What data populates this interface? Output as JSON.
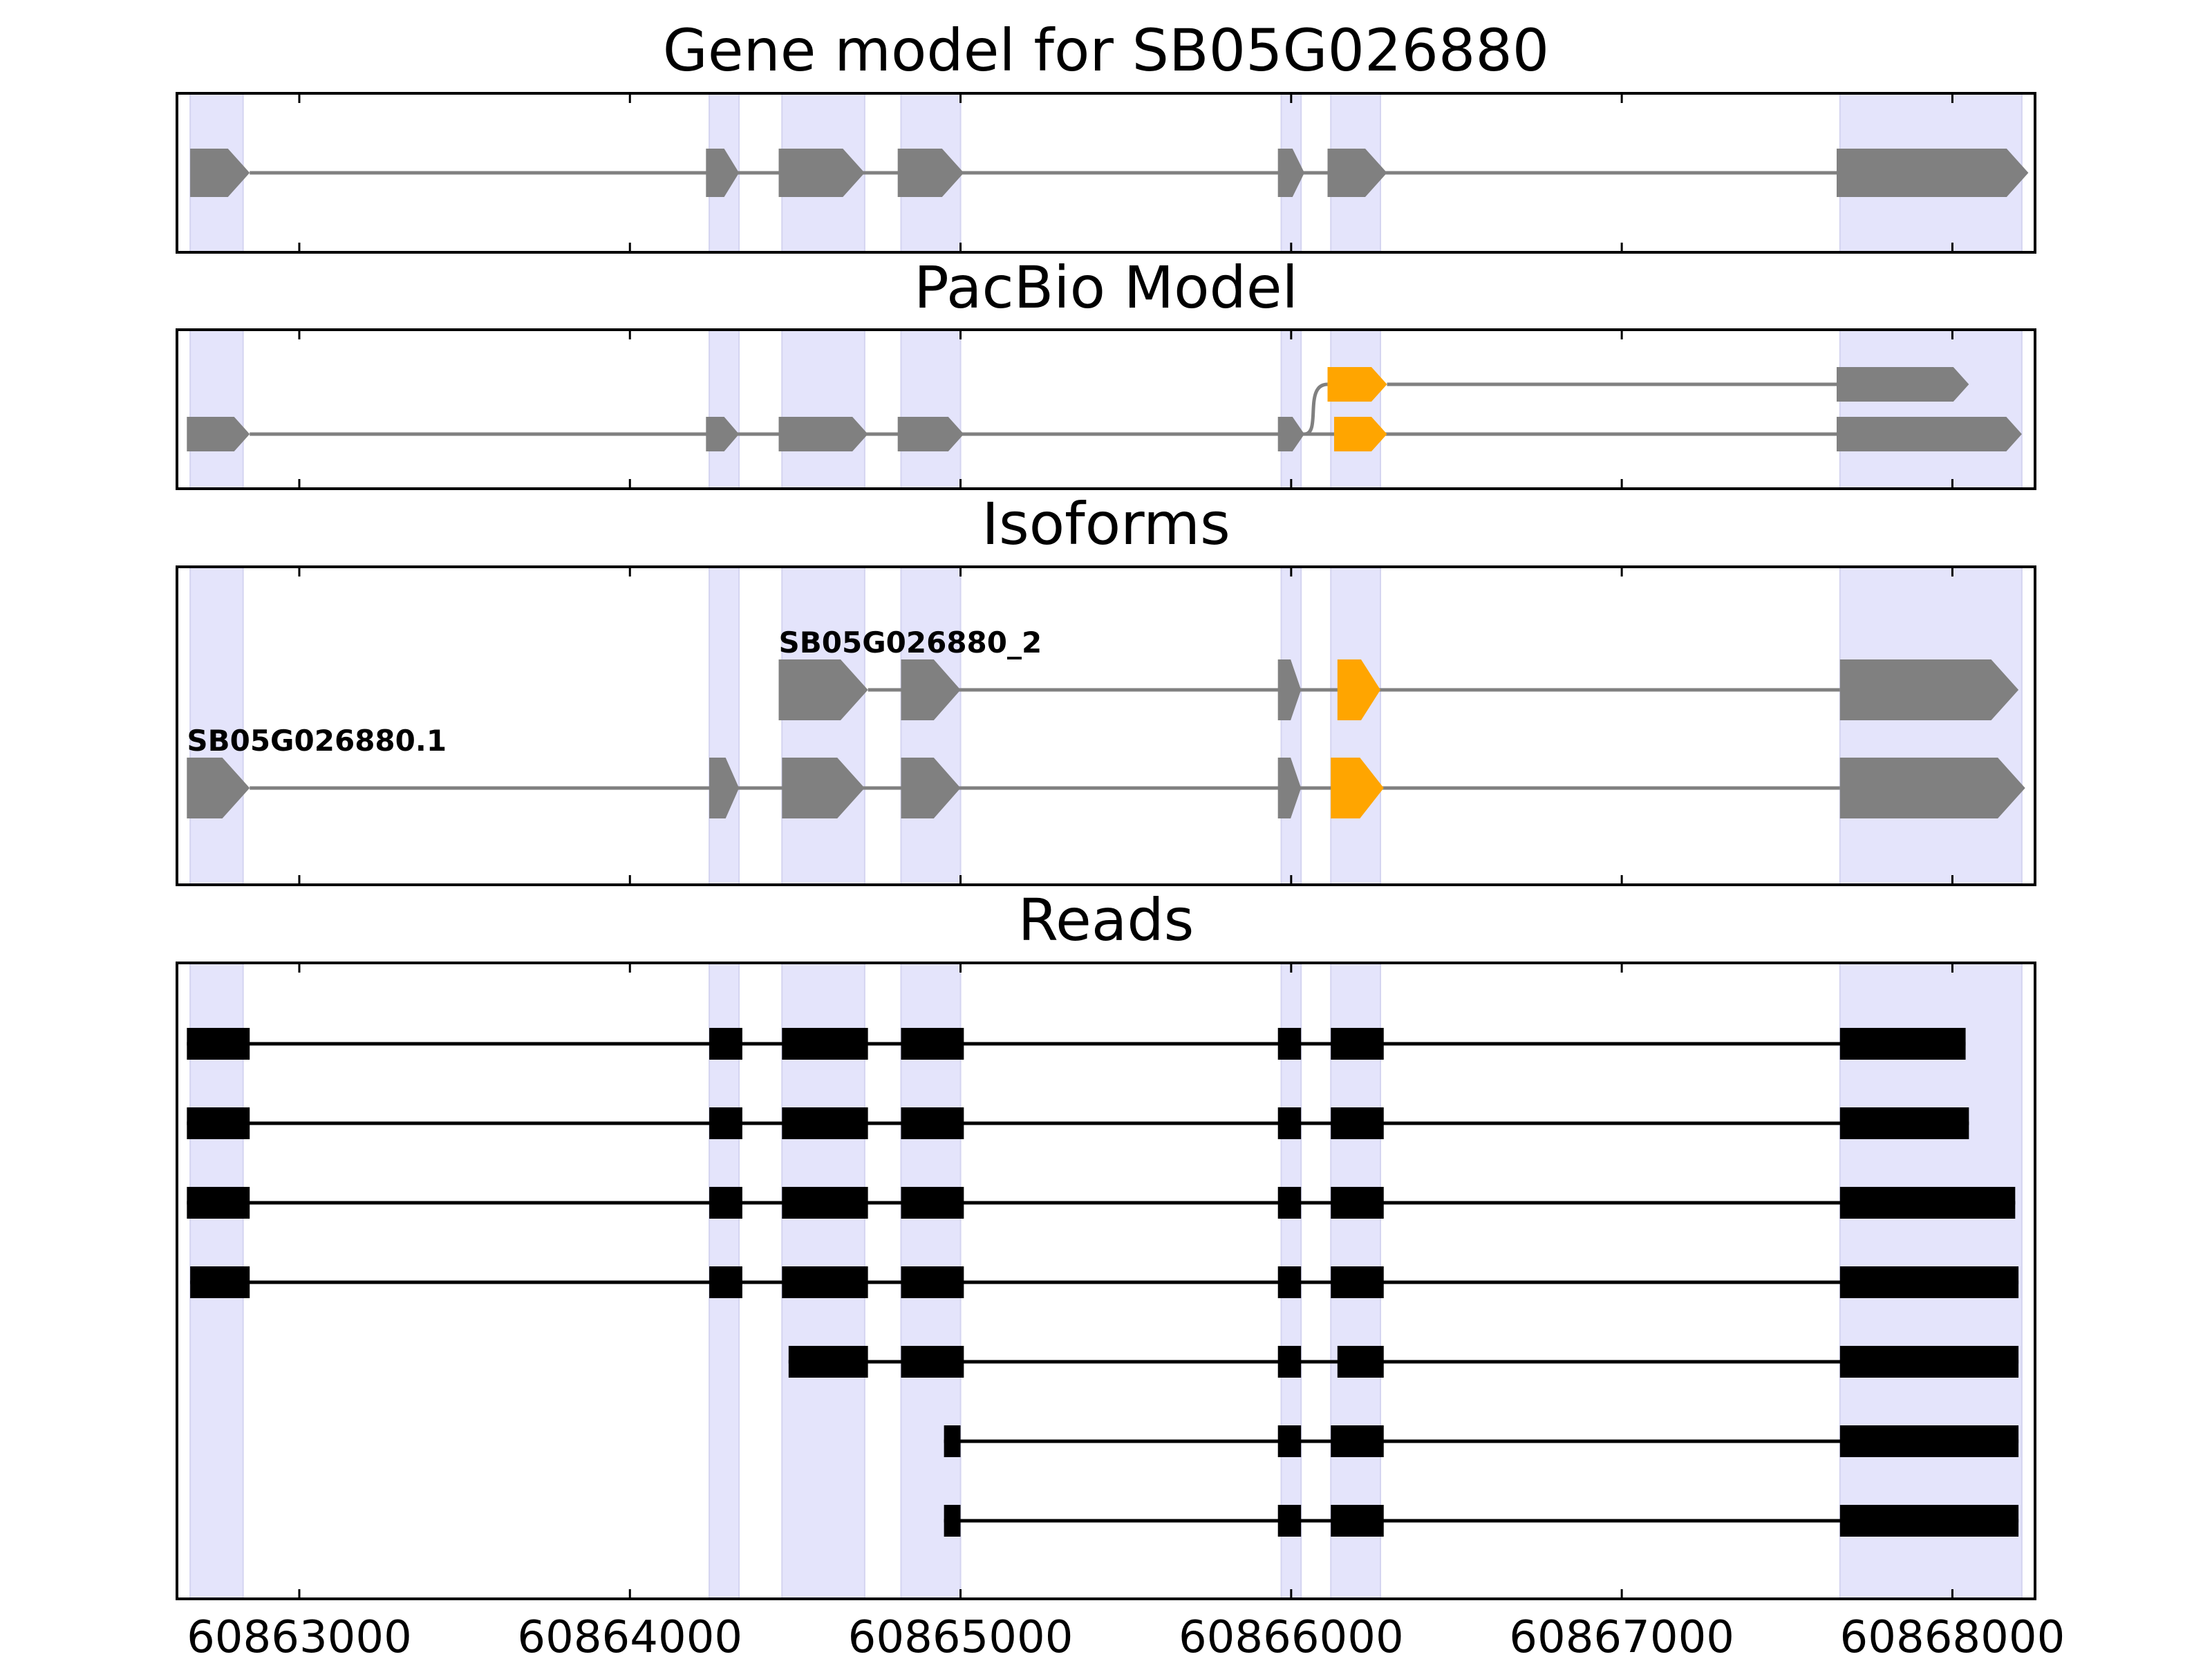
{
  "chart_data": {
    "type": "gene-structure",
    "xlim": [
      60862630,
      60868250
    ],
    "x_ticks": [
      60863000,
      60864000,
      60865000,
      60866000,
      60867000,
      60868000
    ],
    "x_tick_labels": [
      "60863000",
      "60864000",
      "60865000",
      "60866000",
      "60867000",
      "60868000"
    ],
    "colors": {
      "highlight": "#e4e4fb",
      "model_exon": "#808080",
      "alt_exon": "#ffa500",
      "read": "#000000",
      "intron": "#808080"
    },
    "highlight_regions": [
      [
        60862670,
        60862830
      ],
      [
        60864240,
        60864330
      ],
      [
        60864460,
        60864710
      ],
      [
        60864820,
        60865000
      ],
      [
        60865970,
        60866030
      ],
      [
        60866120,
        60866270
      ],
      [
        60867660,
        60868210
      ]
    ],
    "panels": [
      {
        "key": "gene",
        "title": "Gene model for SB05G026880",
        "tracks": [
          {
            "level": 0,
            "exons": [
              {
                "start": 60862670,
                "end": 60862850
              },
              {
                "start": 60864230,
                "end": 60864330
              },
              {
                "start": 60864450,
                "end": 60864710
              },
              {
                "start": 60864810,
                "end": 60865010
              },
              {
                "start": 60865960,
                "end": 60866040
              },
              {
                "start": 60866110,
                "end": 60866290
              },
              {
                "start": 60867650,
                "end": 60868230
              }
            ]
          }
        ]
      },
      {
        "key": "pacbio",
        "title": "PacBio Model",
        "tracks": [
          {
            "level": 1,
            "exons": [
              {
                "start": 60866110,
                "end": 60866290,
                "alt": true
              },
              {
                "start": 60867650,
                "end": 60868050
              }
            ]
          },
          {
            "level": 0,
            "exons": [
              {
                "start": 60862660,
                "end": 60862850
              },
              {
                "start": 60864230,
                "end": 60864330
              },
              {
                "start": 60864450,
                "end": 60864720
              },
              {
                "start": 60864810,
                "end": 60865010
              },
              {
                "start": 60865960,
                "end": 60866040
              },
              {
                "start": 60866130,
                "end": 60866290,
                "alt": true
              },
              {
                "start": 60867650,
                "end": 60868210
              }
            ]
          }
        ],
        "branch": {
          "from": 60866040,
          "to": 60866110
        }
      },
      {
        "key": "isoforms",
        "title": "Isoforms",
        "tracks": [
          {
            "level": 1,
            "label": "SB05G026880_2",
            "exons": [
              {
                "start": 60864450,
                "end": 60864720
              },
              {
                "start": 60864820,
                "end": 60865000
              },
              {
                "start": 60865960,
                "end": 60866030
              },
              {
                "start": 60866140,
                "end": 60866270,
                "alt": true
              },
              {
                "start": 60867660,
                "end": 60868200
              }
            ]
          },
          {
            "level": 0,
            "label": "SB05G026880.1",
            "exons": [
              {
                "start": 60862660,
                "end": 60862850
              },
              {
                "start": 60864240,
                "end": 60864330
              },
              {
                "start": 60864460,
                "end": 60864710
              },
              {
                "start": 60864820,
                "end": 60865000
              },
              {
                "start": 60865960,
                "end": 60866030
              },
              {
                "start": 60866120,
                "end": 60866280,
                "alt": true
              },
              {
                "start": 60867660,
                "end": 60868220
              }
            ]
          }
        ]
      },
      {
        "key": "reads",
        "title": "Reads",
        "reads": [
          [
            [
              60862660,
              60862850
            ],
            [
              60864240,
              60864340
            ],
            [
              60864460,
              60864720
            ],
            [
              60864820,
              60865010
            ],
            [
              60865960,
              60866030
            ],
            [
              60866120,
              60866280
            ],
            [
              60867660,
              60868040
            ]
          ],
          [
            [
              60862660,
              60862850
            ],
            [
              60864240,
              60864340
            ],
            [
              60864460,
              60864720
            ],
            [
              60864820,
              60865010
            ],
            [
              60865960,
              60866030
            ],
            [
              60866120,
              60866280
            ],
            [
              60867660,
              60868050
            ]
          ],
          [
            [
              60862660,
              60862850
            ],
            [
              60864240,
              60864340
            ],
            [
              60864460,
              60864720
            ],
            [
              60864820,
              60865010
            ],
            [
              60865960,
              60866030
            ],
            [
              60866120,
              60866280
            ],
            [
              60867660,
              60868190
            ]
          ],
          [
            [
              60862670,
              60862850
            ],
            [
              60864240,
              60864340
            ],
            [
              60864460,
              60864720
            ],
            [
              60864820,
              60865010
            ],
            [
              60865960,
              60866030
            ],
            [
              60866120,
              60866280
            ],
            [
              60867660,
              60868200
            ]
          ],
          [
            [
              60864480,
              60864720
            ],
            [
              60864820,
              60865010
            ],
            [
              60865960,
              60866030
            ],
            [
              60866140,
              60866280
            ],
            [
              60867660,
              60868200
            ]
          ],
          [
            [
              60864950,
              60865000
            ],
            [
              60865960,
              60866030
            ],
            [
              60866120,
              60866280
            ],
            [
              60867660,
              60868200
            ]
          ],
          [
            [
              60864950,
              60865000
            ],
            [
              60865960,
              60866030
            ],
            [
              60866120,
              60866280
            ],
            [
              60867660,
              60868200
            ]
          ]
        ]
      }
    ]
  }
}
